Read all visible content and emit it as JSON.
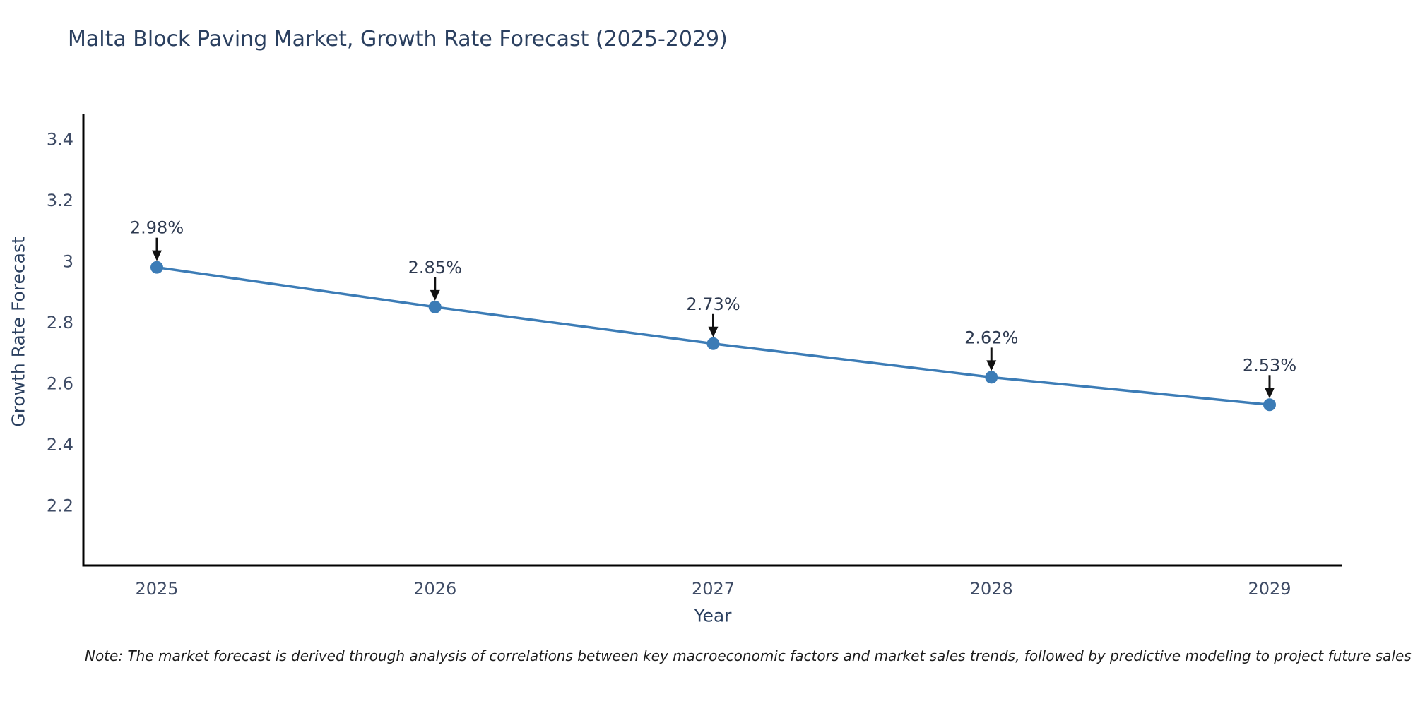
{
  "title": "Malta Block Paving Market, Growth Rate Forecast (2025-2029)",
  "note": "Note: The market forecast is derived through analysis of correlations between key macroeconomic factors and market sales trends, followed by predictive modeling to project future sales",
  "colors": {
    "line": "#3c7cb6",
    "marker": "#3c7cb6",
    "arrow": "#111111",
    "title_text": "#2a3f5f",
    "tick_text": "#3f4c66",
    "axis_line": "#000000",
    "background": "#ffffff"
  },
  "chart_data": {
    "type": "line",
    "title": "Malta Block Paving Market, Growth Rate Forecast (2025-2029)",
    "xlabel": "Year",
    "ylabel": "Growth Rate Forecast",
    "x": [
      2025,
      2026,
      2027,
      2028,
      2029
    ],
    "values": [
      2.98,
      2.85,
      2.73,
      2.62,
      2.53
    ],
    "point_labels": [
      "2.98%",
      "2.85%",
      "2.73%",
      "2.62%",
      "2.53%"
    ],
    "x_tick_labels": [
      "2025",
      "2026",
      "2027",
      "2028",
      "2029"
    ],
    "y_ticks": [
      2.2,
      2.4,
      2.6,
      2.8,
      3,
      3.2,
      3.4
    ],
    "y_tick_labels": [
      "2.2",
      "2.4",
      "2.6",
      "2.8",
      "3",
      "3.2",
      "3.4"
    ],
    "ylim": [
      2.0,
      3.48
    ],
    "grid": false,
    "legend": false,
    "annotations": "black down-arrows from each value label to its data point"
  }
}
